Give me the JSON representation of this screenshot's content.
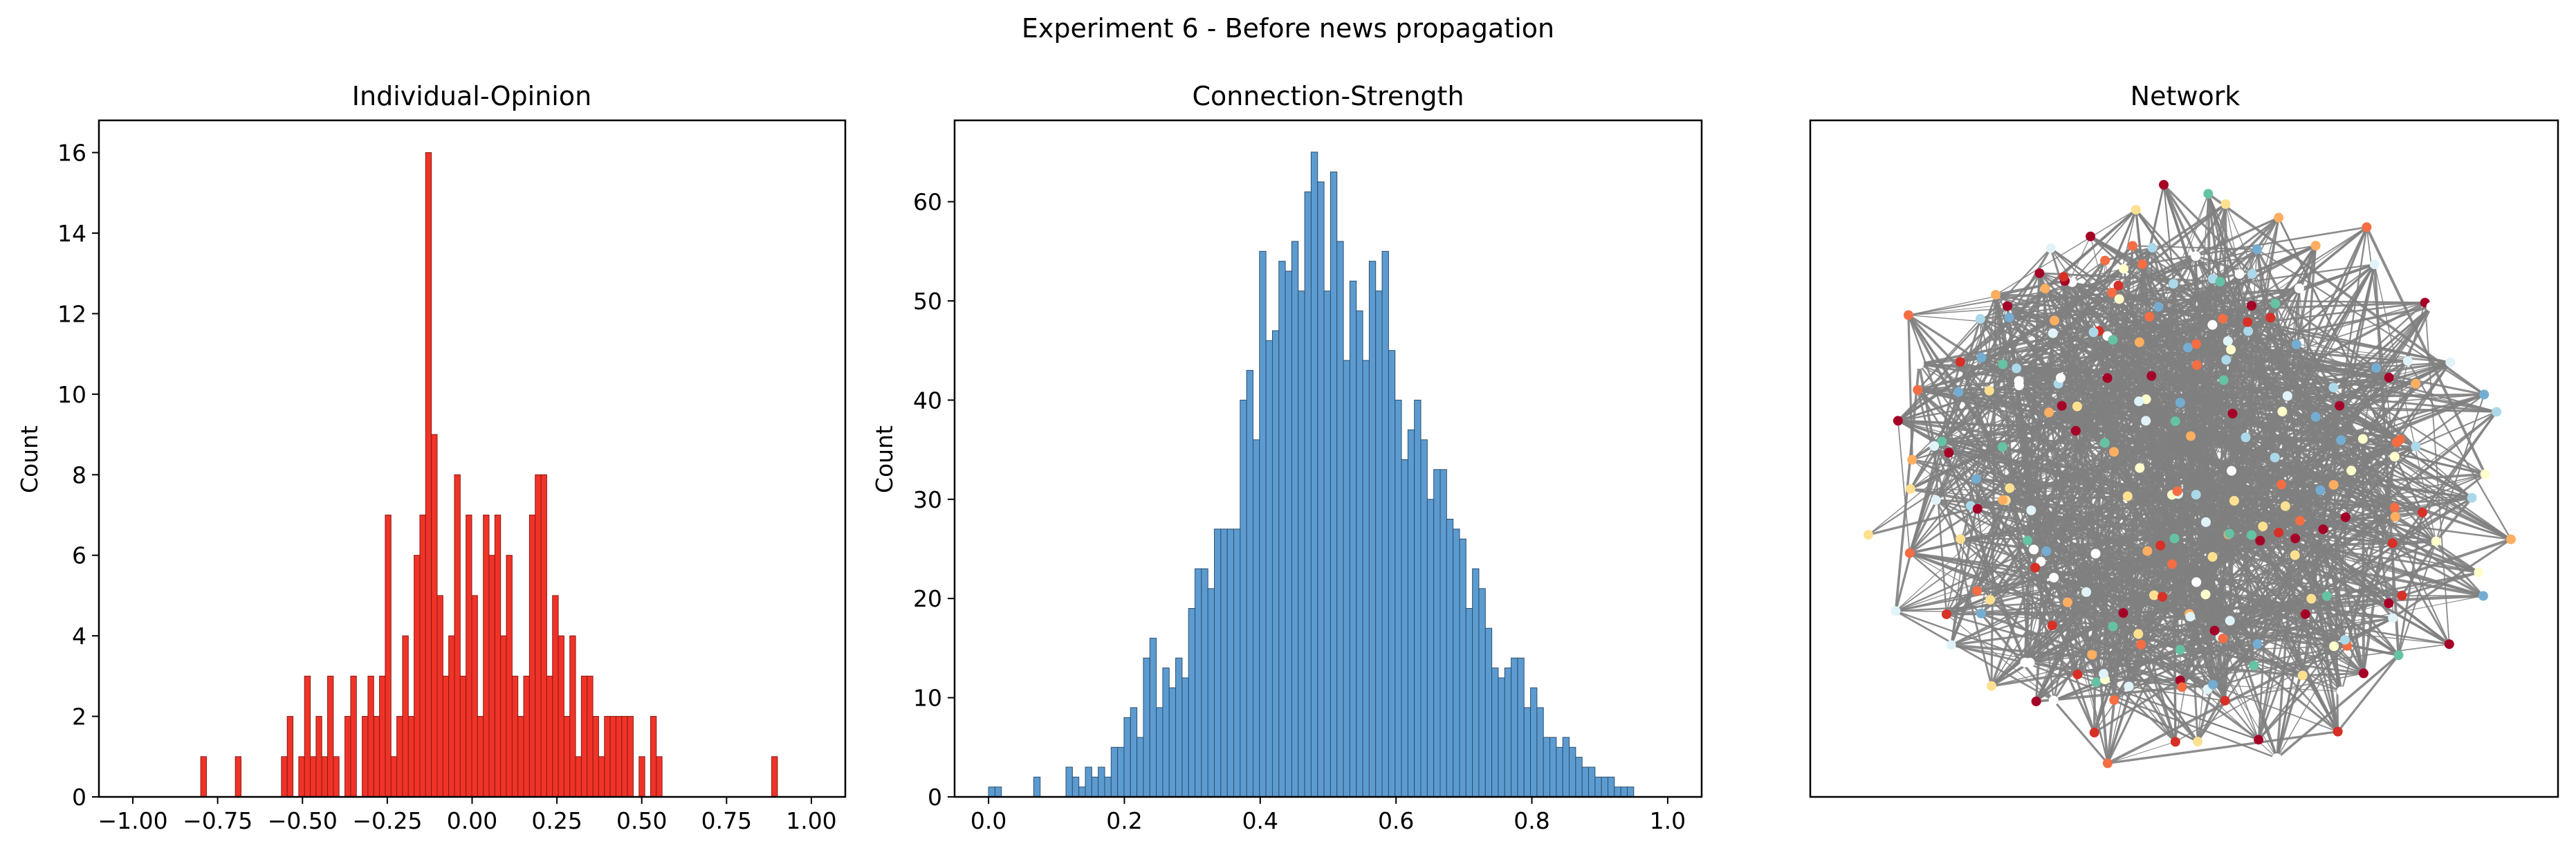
{
  "figure": {
    "suptitle": "Experiment 6 - Before news propagation"
  },
  "chart_data": [
    {
      "type": "bar",
      "title": "Individual-Opinion",
      "xlabel": "",
      "ylabel": "Count",
      "xlim": [
        -1.1,
        1.1
      ],
      "ylim": [
        0,
        16.8
      ],
      "xticks": [
        -1.0,
        -0.75,
        -0.5,
        -0.25,
        0.0,
        0.25,
        0.5,
        0.75,
        1.0
      ],
      "xtick_labels": [
        "−1.00",
        "−0.75",
        "−0.50",
        "−0.25",
        "0.00",
        "0.25",
        "0.50",
        "0.75",
        "1.00"
      ],
      "yticks": [
        0,
        2,
        4,
        6,
        8,
        10,
        12,
        14,
        16
      ],
      "ytick_labels": [
        "0",
        "2",
        "4",
        "6",
        "8",
        "10",
        "12",
        "14",
        "16"
      ],
      "bin_start": -0.8,
      "bin_width": 0.017,
      "values": [
        1,
        0,
        0,
        0,
        0,
        0,
        1,
        0,
        0,
        0,
        0,
        0,
        0,
        0,
        1,
        2,
        0,
        1,
        3,
        1,
        2,
        1,
        3,
        1,
        0,
        2,
        3,
        0,
        2,
        3,
        2,
        3,
        7,
        1,
        2,
        4,
        2,
        6,
        7,
        16,
        9,
        5,
        3,
        4,
        8,
        3,
        7,
        5,
        2,
        7,
        6,
        7,
        4,
        6,
        3,
        2,
        3,
        7,
        8,
        8,
        3,
        5,
        4,
        2,
        4,
        1,
        3,
        3,
        2,
        1,
        2,
        2,
        2,
        2,
        2,
        0,
        1,
        0,
        2,
        1,
        0,
        0,
        0,
        0,
        0,
        0,
        0,
        0,
        0,
        0,
        0,
        0,
        0,
        0,
        0,
        0,
        0,
        0,
        0,
        1
      ],
      "color": "#f03328",
      "edgecolor": "#8a1a14"
    },
    {
      "type": "bar",
      "title": "Connection-Strength",
      "xlabel": "",
      "ylabel": "Count",
      "xlim": [
        -0.05,
        1.05
      ],
      "ylim": [
        0,
        68.2
      ],
      "xticks": [
        0.0,
        0.2,
        0.4,
        0.6,
        0.8,
        1.0
      ],
      "xtick_labels": [
        "0.0",
        "0.2",
        "0.4",
        "0.6",
        "0.8",
        "1.0"
      ],
      "yticks": [
        0,
        10,
        20,
        30,
        40,
        50,
        60
      ],
      "ytick_labels": [
        "0",
        "10",
        "20",
        "30",
        "40",
        "50",
        "60"
      ],
      "bin_start": 0.0,
      "bin_width": 0.0095,
      "values": [
        1,
        1,
        0,
        0,
        0,
        0,
        0,
        2,
        0,
        0,
        0,
        0,
        3,
        2,
        1,
        3,
        2,
        3,
        2,
        5,
        5,
        8,
        9,
        6,
        14,
        16,
        9,
        13,
        11,
        14,
        12,
        19,
        23,
        23,
        21,
        27,
        27,
        27,
        27,
        40,
        43,
        36,
        55,
        46,
        47,
        54,
        53,
        56,
        51,
        61,
        65,
        62,
        51,
        63,
        56,
        44,
        52,
        49,
        44,
        54,
        51,
        55,
        45,
        40,
        34,
        37,
        40,
        36,
        30,
        33,
        33,
        28,
        27,
        26,
        19,
        23,
        21,
        17,
        13,
        12,
        13,
        14,
        14,
        9,
        11,
        9,
        6,
        6,
        5,
        6,
        5,
        4,
        3,
        3,
        2,
        2,
        2,
        1,
        1,
        1
      ],
      "color": "#5c9bd0",
      "edgecolor": "#2d4f6e"
    }
  ],
  "network": {
    "title": "Network",
    "edge_color": "#808080",
    "node_colors": [
      "#ffffff",
      "#ffffcc",
      "#fee090",
      "#fdae61",
      "#f46d43",
      "#d73027",
      "#a50026",
      "#abd9e9",
      "#74add1",
      "#e0f3f8",
      "#66c2a5"
    ]
  }
}
